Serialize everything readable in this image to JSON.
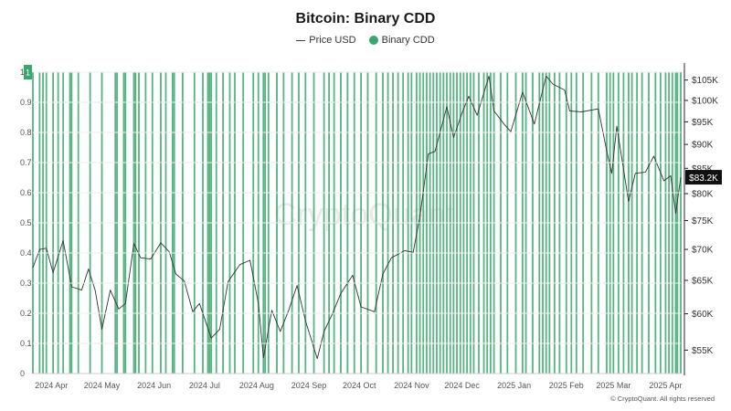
{
  "chart_data": {
    "type": "line",
    "title": "Bitcoin: Binary CDD",
    "copyright": "© CryptoQuant. All rights reserved",
    "watermark": "CryptoQuant",
    "colors": {
      "cdd": "#3aa66b",
      "price": "#333333",
      "badge_bg": "#111111",
      "badge_text": "#ffffff"
    },
    "series": [
      {
        "name": "Price USD",
        "axis": "right",
        "style": "line"
      },
      {
        "name": "Binary CDD",
        "axis": "left",
        "style": "bar"
      }
    ],
    "x_tick_labels": [
      "2024 Apr",
      "2024 May",
      "2024 Jun",
      "2024 Jul",
      "2024 Aug",
      "2024 Sep",
      "2024 Oct",
      "2024 Nov",
      "2024 Dec",
      "2025 Jan",
      "2025 Feb",
      "2025 Mar",
      "2025 Apr"
    ],
    "x_range": [
      "2024-03-21",
      "2025-04-10"
    ],
    "left_axis": {
      "ticks": [
        "0",
        "0.1",
        "0.2",
        "0.3",
        "0.4",
        "0.5",
        "0.6",
        "0.7",
        "0.8",
        "0.9",
        "1"
      ],
      "ylim": [
        0,
        1
      ]
    },
    "right_axis": {
      "scale": "log",
      "ticks": [
        {
          "label": "$55K",
          "value": 55000
        },
        {
          "label": "$60K",
          "value": 60000
        },
        {
          "label": "$65K",
          "value": 65000
        },
        {
          "label": "$70K",
          "value": 70000
        },
        {
          "label": "$75K",
          "value": 75000
        },
        {
          "label": "$80K",
          "value": 80000
        },
        {
          "label": "$85K",
          "value": 85000
        },
        {
          "label": "$90K",
          "value": 90000
        },
        {
          "label": "$95K",
          "value": 95000
        },
        {
          "label": "$100K",
          "value": 100000
        },
        {
          "label": "$105K",
          "value": 105000
        }
      ],
      "ylim": [
        52000,
        107000
      ]
    },
    "last_price_label": "$83.2K",
    "last_binary_label": "1",
    "price_points": [
      [
        "2024-03-21",
        67000
      ],
      [
        "2024-03-25",
        70000
      ],
      [
        "2024-03-29",
        70200
      ],
      [
        "2024-04-02",
        66200
      ],
      [
        "2024-04-08",
        71500
      ],
      [
        "2024-04-13",
        64000
      ],
      [
        "2024-04-19",
        63500
      ],
      [
        "2024-04-23",
        66800
      ],
      [
        "2024-04-27",
        63500
      ],
      [
        "2024-05-01",
        57800
      ],
      [
        "2024-05-06",
        63500
      ],
      [
        "2024-05-11",
        60700
      ],
      [
        "2024-05-15",
        61500
      ],
      [
        "2024-05-20",
        71000
      ],
      [
        "2024-05-24",
        68600
      ],
      [
        "2024-05-30",
        68400
      ],
      [
        "2024-06-05",
        71100
      ],
      [
        "2024-06-10",
        69600
      ],
      [
        "2024-06-14",
        66000
      ],
      [
        "2024-06-19",
        64900
      ],
      [
        "2024-06-24",
        60300
      ],
      [
        "2024-06-28",
        61500
      ],
      [
        "2024-07-05",
        56600
      ],
      [
        "2024-07-10",
        57800
      ],
      [
        "2024-07-15",
        64800
      ],
      [
        "2024-07-22",
        67500
      ],
      [
        "2024-07-28",
        68200
      ],
      [
        "2024-08-02",
        61500
      ],
      [
        "2024-08-05",
        54000
      ],
      [
        "2024-08-10",
        60500
      ],
      [
        "2024-08-15",
        57500
      ],
      [
        "2024-08-20",
        60500
      ],
      [
        "2024-08-25",
        64200
      ],
      [
        "2024-08-30",
        59000
      ],
      [
        "2024-09-06",
        53900
      ],
      [
        "2024-09-10",
        57500
      ],
      [
        "2024-09-15",
        60000
      ],
      [
        "2024-09-20",
        63000
      ],
      [
        "2024-09-27",
        65800
      ],
      [
        "2024-10-02",
        61000
      ],
      [
        "2024-10-10",
        60300
      ],
      [
        "2024-10-15",
        66000
      ],
      [
        "2024-10-20",
        68600
      ],
      [
        "2024-10-28",
        69800
      ],
      [
        "2024-11-02",
        69500
      ],
      [
        "2024-11-06",
        75800
      ],
      [
        "2024-11-11",
        88000
      ],
      [
        "2024-11-15",
        88500
      ],
      [
        "2024-11-22",
        98500
      ],
      [
        "2024-11-26",
        91500
      ],
      [
        "2024-12-01",
        97000
      ],
      [
        "2024-12-05",
        101000
      ],
      [
        "2024-12-10",
        96500
      ],
      [
        "2024-12-17",
        106000
      ],
      [
        "2024-12-20",
        97500
      ],
      [
        "2024-12-26",
        94500
      ],
      [
        "2024-12-30",
        92800
      ],
      [
        "2025-01-06",
        102000
      ],
      [
        "2025-01-13",
        94500
      ],
      [
        "2025-01-20",
        106000
      ],
      [
        "2025-01-24",
        104000
      ],
      [
        "2025-01-31",
        102500
      ],
      [
        "2025-02-03",
        97500
      ],
      [
        "2025-02-10",
        97300
      ],
      [
        "2025-02-20",
        98000
      ],
      [
        "2025-02-25",
        88600
      ],
      [
        "2025-02-28",
        84000
      ],
      [
        "2025-03-03",
        94000
      ],
      [
        "2025-03-10",
        78500
      ],
      [
        "2025-03-14",
        84000
      ],
      [
        "2025-03-20",
        84200
      ],
      [
        "2025-03-25",
        87500
      ],
      [
        "2025-03-31",
        82500
      ],
      [
        "2025-04-04",
        83500
      ],
      [
        "2025-04-07",
        76300
      ],
      [
        "2025-04-10",
        83200
      ]
    ],
    "cdd_on_dates": [
      "2024-03-21",
      "2024-03-25",
      "2024-03-27",
      "2024-03-29",
      "2024-04-02",
      "2024-04-05",
      "2024-04-08",
      "2024-04-12",
      "2024-04-13",
      "2024-04-17",
      "2024-04-24",
      "2024-05-01",
      "2024-05-09",
      "2024-05-10",
      "2024-05-14",
      "2024-05-15",
      "2024-05-20",
      "2024-05-21",
      "2024-05-23",
      "2024-05-27",
      "2024-05-31",
      "2024-06-05",
      "2024-06-08",
      "2024-06-12",
      "2024-06-13",
      "2024-06-18",
      "2024-06-25",
      "2024-06-30",
      "2024-07-03",
      "2024-07-04",
      "2024-07-05",
      "2024-07-08",
      "2024-07-12",
      "2024-07-16",
      "2024-07-19",
      "2024-07-24",
      "2024-07-30",
      "2024-08-02",
      "2024-08-05",
      "2024-08-06",
      "2024-08-08",
      "2024-08-13",
      "2024-08-17",
      "2024-08-22",
      "2024-08-26",
      "2024-08-30",
      "2024-09-04",
      "2024-09-10",
      "2024-09-13",
      "2024-09-16",
      "2024-09-20",
      "2024-09-24",
      "2024-09-28",
      "2024-10-02",
      "2024-10-06",
      "2024-10-11",
      "2024-10-15",
      "2024-10-18",
      "2024-10-21",
      "2024-10-24",
      "2024-10-27",
      "2024-10-30",
      "2024-11-01",
      "2024-11-04",
      "2024-11-06",
      "2024-11-08",
      "2024-11-10",
      "2024-11-12",
      "2024-11-14",
      "2024-11-16",
      "2024-11-18",
      "2024-11-20",
      "2024-11-22",
      "2024-11-24",
      "2024-11-26",
      "2024-11-28",
      "2024-11-30",
      "2024-12-02",
      "2024-12-04",
      "2024-12-06",
      "2024-12-08",
      "2024-12-11",
      "2024-12-14",
      "2024-12-16",
      "2024-12-18",
      "2024-12-20",
      "2024-12-24",
      "2024-12-28",
      "2025-01-02",
      "2025-01-06",
      "2025-01-08",
      "2025-01-12",
      "2025-01-16",
      "2025-01-18",
      "2025-01-20",
      "2025-01-22",
      "2025-01-25",
      "2025-01-28",
      "2025-02-01",
      "2025-02-04",
      "2025-02-07",
      "2025-02-11",
      "2025-02-16",
      "2025-02-20",
      "2025-02-25",
      "2025-02-27",
      "2025-03-01",
      "2025-03-04",
      "2025-03-07",
      "2025-03-10",
      "2025-03-12",
      "2025-03-15",
      "2025-03-18",
      "2025-03-22",
      "2025-03-26",
      "2025-03-29",
      "2025-04-01",
      "2025-04-03",
      "2025-04-05",
      "2025-04-07",
      "2025-04-08",
      "2025-04-10"
    ]
  }
}
